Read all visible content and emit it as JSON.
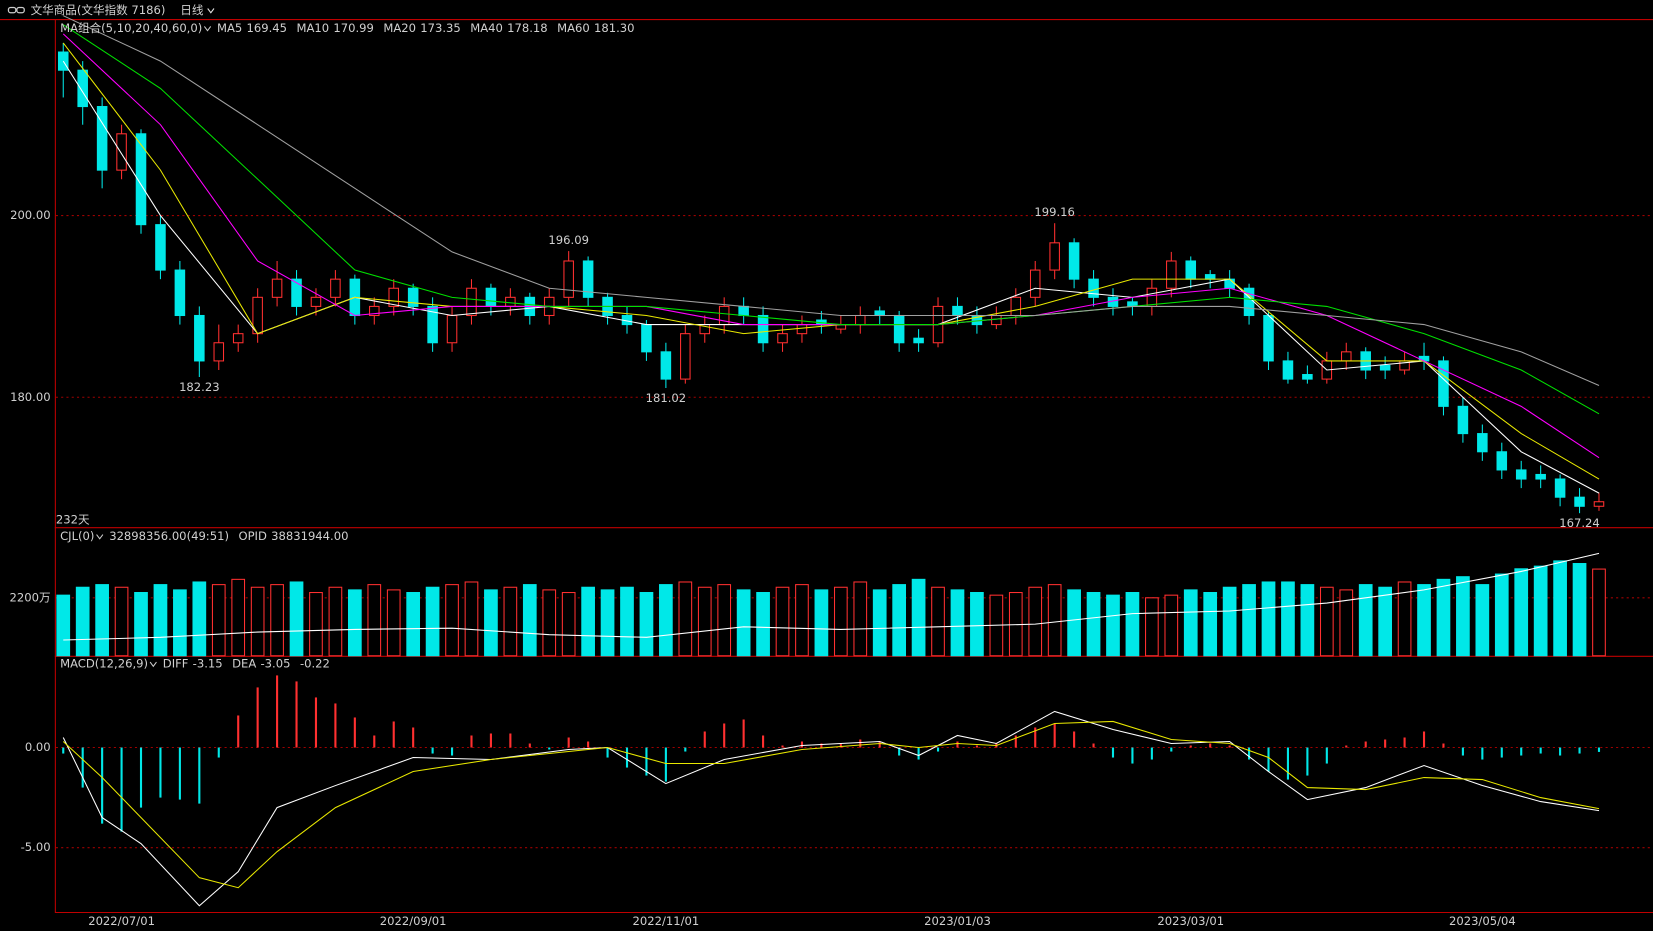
{
  "header": {
    "symbol": "文华商品(文华指数 7186)",
    "period": "日线"
  },
  "chart_data": [
    {
      "type": "candlestick",
      "legend_title": "MA组合(5,10,20,40,60,0)",
      "days_label": "232天",
      "ylim": [
        165.7,
        221.4
      ],
      "yticks": [
        {
          "value": 180,
          "label": "180.00"
        },
        {
          "value": 200,
          "label": "200.00"
        }
      ],
      "grid": true,
      "up_color": "#ff3030",
      "down_color": "#00e8e8",
      "ohlc": [
        [
          218,
          219,
          213,
          216
        ],
        [
          216,
          217,
          210,
          212
        ],
        [
          212,
          213,
          203,
          205
        ],
        [
          205,
          210,
          204,
          209
        ],
        [
          209,
          209.5,
          198,
          199
        ],
        [
          199,
          200,
          193,
          194
        ],
        [
          194,
          195,
          188,
          189
        ],
        [
          189,
          190,
          182.23,
          184
        ],
        [
          184,
          188,
          183,
          186
        ],
        [
          186,
          188,
          185,
          187
        ],
        [
          187,
          192,
          186,
          191
        ],
        [
          191,
          195,
          190,
          193
        ],
        [
          193,
          194,
          189,
          190
        ],
        [
          190,
          192,
          189,
          191
        ],
        [
          191,
          194,
          190,
          193
        ],
        [
          193,
          193.5,
          188,
          189
        ],
        [
          189,
          191,
          188,
          190
        ],
        [
          190,
          193,
          189,
          192
        ],
        [
          192,
          192.5,
          189,
          190
        ],
        [
          190,
          191,
          185,
          186
        ],
        [
          186,
          190,
          185,
          189
        ],
        [
          189,
          193,
          188,
          192
        ],
        [
          192,
          192.5,
          189,
          190
        ],
        [
          190,
          192,
          189,
          191
        ],
        [
          191,
          191.5,
          188,
          189
        ],
        [
          189,
          192,
          188,
          191
        ],
        [
          191,
          196.09,
          190,
          195
        ],
        [
          195,
          195.5,
          190,
          191
        ],
        [
          191,
          191.5,
          188,
          189
        ],
        [
          189,
          190,
          187,
          188
        ],
        [
          188,
          188.5,
          184,
          185
        ],
        [
          185,
          186,
          181.02,
          182
        ],
        [
          182,
          188,
          181.5,
          187
        ],
        [
          187,
          189,
          186,
          188
        ],
        [
          188,
          191,
          187,
          190
        ],
        [
          190,
          191,
          188,
          189
        ],
        [
          189,
          190,
          185,
          186
        ],
        [
          186,
          188,
          185,
          187
        ],
        [
          187,
          189,
          186,
          188
        ],
        [
          188.5,
          189.5,
          187,
          188
        ],
        [
          187.5,
          189,
          187,
          188
        ],
        [
          188,
          190,
          187,
          189
        ],
        [
          189.5,
          190,
          188,
          189
        ],
        [
          189,
          189.5,
          185,
          186
        ],
        [
          186.5,
          187.5,
          185,
          186
        ],
        [
          186,
          191,
          185.5,
          190
        ],
        [
          190,
          191,
          188,
          189
        ],
        [
          189,
          190,
          187,
          188
        ],
        [
          188,
          190,
          187.5,
          189
        ],
        [
          189,
          192,
          188,
          191
        ],
        [
          191,
          195,
          190,
          194
        ],
        [
          194,
          199.16,
          193,
          197
        ],
        [
          197,
          197.5,
          192,
          193
        ],
        [
          193,
          194,
          190,
          191
        ],
        [
          191,
          192,
          189,
          190
        ],
        [
          190.5,
          191,
          189,
          190
        ],
        [
          190,
          193,
          189,
          192
        ],
        [
          192,
          196,
          191,
          195
        ],
        [
          195,
          195.5,
          192,
          193
        ],
        [
          193.5,
          194,
          192,
          193
        ],
        [
          193,
          194,
          191,
          192
        ],
        [
          192,
          192.5,
          188,
          189
        ],
        [
          189,
          189.5,
          183,
          184
        ],
        [
          184,
          185,
          181.5,
          182
        ],
        [
          182.5,
          183.5,
          181.5,
          182
        ],
        [
          182,
          185,
          181.5,
          184
        ],
        [
          184,
          186,
          183,
          185
        ],
        [
          185,
          185.5,
          182,
          183
        ],
        [
          183.5,
          184.5,
          182,
          183
        ],
        [
          183,
          185,
          182.5,
          184
        ],
        [
          184.5,
          186,
          183,
          184
        ],
        [
          184,
          184.5,
          178,
          179
        ],
        [
          179,
          180,
          175,
          176
        ],
        [
          176,
          177,
          173,
          174
        ],
        [
          174,
          175,
          171,
          172
        ],
        [
          172,
          173,
          170,
          171
        ],
        [
          171.5,
          172.5,
          170,
          171
        ],
        [
          171,
          171.5,
          168,
          169
        ],
        [
          169,
          170,
          167.24,
          168
        ],
        [
          168,
          169.5,
          167.5,
          168.5
        ]
      ],
      "series": [
        {
          "name": "MA5",
          "color": "#ffffff",
          "x": [
            0,
            5,
            10,
            15,
            20,
            25,
            30,
            35,
            40,
            45,
            50,
            55,
            60,
            65,
            70,
            75,
            79
          ],
          "values": [
            217,
            200,
            187,
            191,
            189,
            190,
            188,
            188,
            188,
            188,
            192,
            191,
            193,
            183,
            184,
            174,
            169.45
          ]
        },
        {
          "name": "MA10",
          "color": "#e8e800",
          "x": [
            0,
            5,
            10,
            15,
            20,
            25,
            30,
            35,
            40,
            45,
            50,
            55,
            60,
            65,
            70,
            75,
            79
          ],
          "values": [
            219,
            205,
            187,
            191,
            190,
            190,
            189,
            187,
            188,
            188,
            190,
            193,
            193,
            184,
            184,
            176,
            170.99
          ]
        },
        {
          "name": "MA20",
          "color": "#ff00ff",
          "x": [
            0,
            5,
            10,
            15,
            20,
            25,
            30,
            35,
            40,
            45,
            50,
            55,
            60,
            65,
            70,
            75,
            79
          ],
          "values": [
            220,
            210,
            195,
            189,
            190,
            190,
            190,
            188,
            188,
            188,
            189,
            191,
            192,
            189,
            184,
            179,
            173.35
          ]
        },
        {
          "name": "MA40",
          "color": "#00e000",
          "x": [
            0,
            5,
            10,
            15,
            20,
            25,
            30,
            35,
            40,
            45,
            50,
            55,
            60,
            65,
            70,
            75,
            79
          ],
          "values": [
            221,
            214,
            204,
            194,
            191,
            190,
            190,
            189,
            188,
            188,
            189,
            190,
            191,
            190,
            187,
            183,
            178.18
          ]
        },
        {
          "name": "MA60",
          "color": "#a0a0a0",
          "x": [
            0,
            5,
            10,
            15,
            20,
            25,
            30,
            35,
            40,
            45,
            50,
            55,
            60,
            65,
            70,
            75,
            79
          ],
          "values": [
            222,
            217,
            210,
            203,
            196,
            192,
            191,
            190,
            189,
            189,
            189,
            190,
            190,
            189,
            188,
            185,
            181.3
          ],
          "current_label": "181.30"
        }
      ]
    },
    {
      "type": "bar",
      "name": "CJL(0)",
      "current_label": "32898356.00",
      "ratio": "(49:51)",
      "ylim": [
        0,
        4800
      ],
      "yticks": [
        {
          "value": 2200,
          "label": "2200万"
        }
      ],
      "values": [
        2300,
        2600,
        2700,
        2600,
        2400,
        2700,
        2500,
        2800,
        2700,
        2900,
        2600,
        2700,
        2800,
        2400,
        2600,
        2500,
        2700,
        2500,
        2400,
        2600,
        2700,
        2800,
        2500,
        2600,
        2700,
        2500,
        2400,
        2600,
        2500,
        2600,
        2400,
        2700,
        2800,
        2600,
        2700,
        2500,
        2400,
        2600,
        2700,
        2500,
        2600,
        2800,
        2500,
        2700,
        2900,
        2600,
        2500,
        2400,
        2300,
        2400,
        2600,
        2700,
        2500,
        2400,
        2300,
        2400,
        2200,
        2300,
        2500,
        2400,
        2600,
        2700,
        2800,
        2800,
        2700,
        2600,
        2500,
        2700,
        2600,
        2800,
        2700,
        2900,
        3000,
        2700,
        3100,
        3300,
        3400,
        3600,
        3500,
        3289.8356
      ],
      "series": [
        {
          "name": "OPID",
          "color": "#ffffff",
          "x": [
            0,
            5,
            10,
            15,
            20,
            25,
            30,
            35,
            40,
            45,
            50,
            55,
            60,
            65,
            70,
            75,
            79
          ],
          "values": [
            600,
            700,
            900,
            1000,
            1050,
            800,
            700,
            1100,
            1000,
            1100,
            1200,
            1600,
            1700,
            2000,
            2500,
            3200,
            3883.1944
          ],
          "current_label": "38831944.00"
        }
      ]
    },
    {
      "type": "macd",
      "name": "MACD(12,26,9)",
      "ylim": [
        -8.21,
        4.58
      ],
      "yticks": [
        {
          "value": 0,
          "label": "0.00"
        },
        {
          "value": -5,
          "label": "-5.00"
        }
      ],
      "grid": true,
      "histogram": {
        "values": [
          -0.3,
          -2.0,
          -3.8,
          -4.2,
          -3.0,
          -2.5,
          -2.6,
          -2.8,
          -0.5,
          1.6,
          3.0,
          3.6,
          3.3,
          2.5,
          2.2,
          1.5,
          0.6,
          1.3,
          1.0,
          -0.3,
          -0.4,
          0.6,
          0.7,
          0.7,
          0.2,
          -0.1,
          0.5,
          0.3,
          -0.5,
          -1.0,
          -1.4,
          -1.7,
          -0.2,
          0.8,
          1.2,
          1.4,
          0.6,
          0.1,
          0.3,
          0.2,
          0.2,
          0.4,
          0.3,
          -0.4,
          -0.6,
          -0.2,
          0.3,
          0.1,
          0.2,
          0.6,
          1.0,
          1.2,
          0.8,
          0.2,
          -0.5,
          -0.8,
          -0.6,
          -0.2,
          0.1,
          0.2,
          0.1,
          -0.6,
          -1.2,
          -1.6,
          -1.4,
          -0.8,
          0.1,
          0.3,
          0.4,
          0.5,
          0.8,
          0.2,
          -0.4,
          -0.6,
          -0.5,
          -0.4,
          -0.3,
          -0.4,
          -0.3,
          -0.22
        ]
      },
      "series": [
        {
          "name": "DIFF",
          "color": "#ffffff",
          "x": [
            0,
            2,
            4,
            7,
            9,
            11,
            14,
            18,
            22,
            26,
            28,
            31,
            34,
            38,
            42,
            44,
            46,
            48,
            51,
            54,
            57,
            60,
            62,
            64,
            67,
            70,
            73,
            76,
            79
          ],
          "values": [
            0.5,
            -3.5,
            -4.8,
            -7.9,
            -6.2,
            -3.0,
            -1.9,
            -0.5,
            -0.6,
            -0.1,
            0.0,
            -1.8,
            -0.6,
            0.1,
            0.3,
            -0.4,
            0.6,
            0.2,
            1.8,
            0.9,
            0.2,
            0.3,
            -1.2,
            -2.6,
            -2.0,
            -0.9,
            -1.9,
            -2.7,
            -3.15
          ]
        },
        {
          "name": "DEA",
          "color": "#e8e800",
          "x": [
            0,
            2,
            4,
            7,
            9,
            11,
            14,
            18,
            22,
            26,
            28,
            31,
            34,
            38,
            42,
            44,
            46,
            48,
            51,
            54,
            57,
            60,
            62,
            64,
            67,
            70,
            73,
            76,
            79
          ],
          "values": [
            0.3,
            -1.5,
            -3.5,
            -6.5,
            -7.0,
            -5.2,
            -3.0,
            -1.2,
            -0.6,
            -0.2,
            0.0,
            -0.8,
            -0.8,
            -0.1,
            0.2,
            0.0,
            0.2,
            0.1,
            1.2,
            1.3,
            0.4,
            0.2,
            -0.5,
            -2.0,
            -2.1,
            -1.5,
            -1.6,
            -2.5,
            -3.05
          ]
        }
      ],
      "xticks": [
        {
          "value": 3,
          "label": "2022/07/01"
        },
        {
          "value": 18,
          "label": "2022/09/01"
        },
        {
          "value": 31,
          "label": "2022/11/01"
        },
        {
          "value": 46,
          "label": "2023/01/03"
        },
        {
          "value": 58,
          "label": "2023/03/01"
        },
        {
          "value": 73,
          "label": "2023/05/04"
        }
      ]
    }
  ]
}
